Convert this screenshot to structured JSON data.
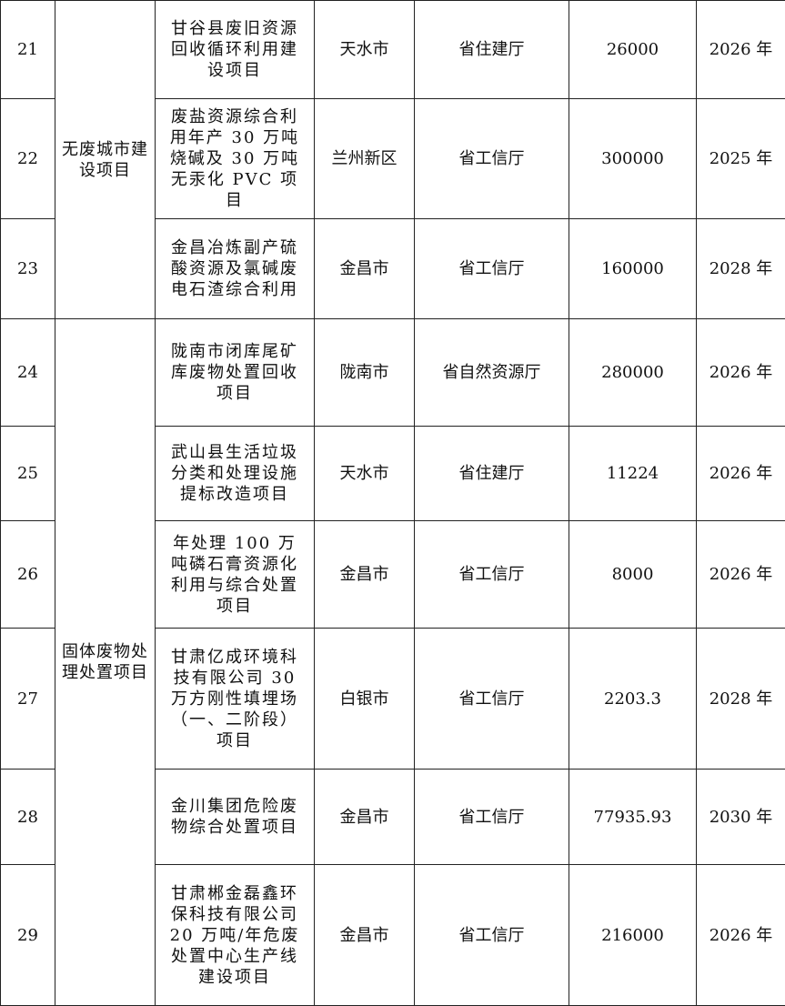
{
  "table": {
    "groups": [
      {
        "label": "无废城市建设项目",
        "rows": [
          {
            "no": "21",
            "name": "甘谷县废旧资源回收循环利用建设项目",
            "city": "天水市",
            "dept": "省住建厅",
            "investment": "26000",
            "year": "2026 年"
          },
          {
            "no": "22",
            "name": "废盐资源综合利用年产 30 万吨烧碱及 30 万吨无汞化 PVC 项目",
            "city": "兰州新区",
            "dept": "省工信厅",
            "investment": "300000",
            "year": "2025 年"
          },
          {
            "no": "23",
            "name": "金昌冶炼副产硫酸资源及氯碱废电石渣综合利用",
            "city": "金昌市",
            "dept": "省工信厅",
            "investment": "160000",
            "year": "2028 年"
          }
        ]
      },
      {
        "label": "固体废物处理处置项目",
        "rows": [
          {
            "no": "24",
            "name": "陇南市闭库尾矿库废物处置回收项目",
            "city": "陇南市",
            "dept": "省自然资源厅",
            "investment": "280000",
            "year": "2026 年"
          },
          {
            "no": "25",
            "name": "武山县生活垃圾分类和处理设施提标改造项目",
            "city": "天水市",
            "dept": "省住建厅",
            "investment": "11224",
            "year": "2026 年"
          },
          {
            "no": "26",
            "name": "年处理 100 万吨磷石膏资源化利用与综合处置项目",
            "city": "金昌市",
            "dept": "省工信厅",
            "investment": "8000",
            "year": "2026 年"
          },
          {
            "no": "27",
            "name": "甘肃亿成环境科技有限公司 30 万方刚性填埋场（一、二阶段）项目",
            "city": "白银市",
            "dept": "省工信厅",
            "investment": "2203.3",
            "year": "2028 年"
          },
          {
            "no": "28",
            "name": "金川集团危险废物综合处置项目",
            "city": "金昌市",
            "dept": "省工信厅",
            "investment": "77935.93",
            "year": "2030 年"
          },
          {
            "no": "29",
            "name": "甘肃郴金磊鑫环保科技有限公司 20 万吨/年危废处置中心生产线建设项目",
            "city": "金昌市",
            "dept": "省工信厅",
            "investment": "216000",
            "year": "2026 年"
          }
        ]
      }
    ]
  }
}
